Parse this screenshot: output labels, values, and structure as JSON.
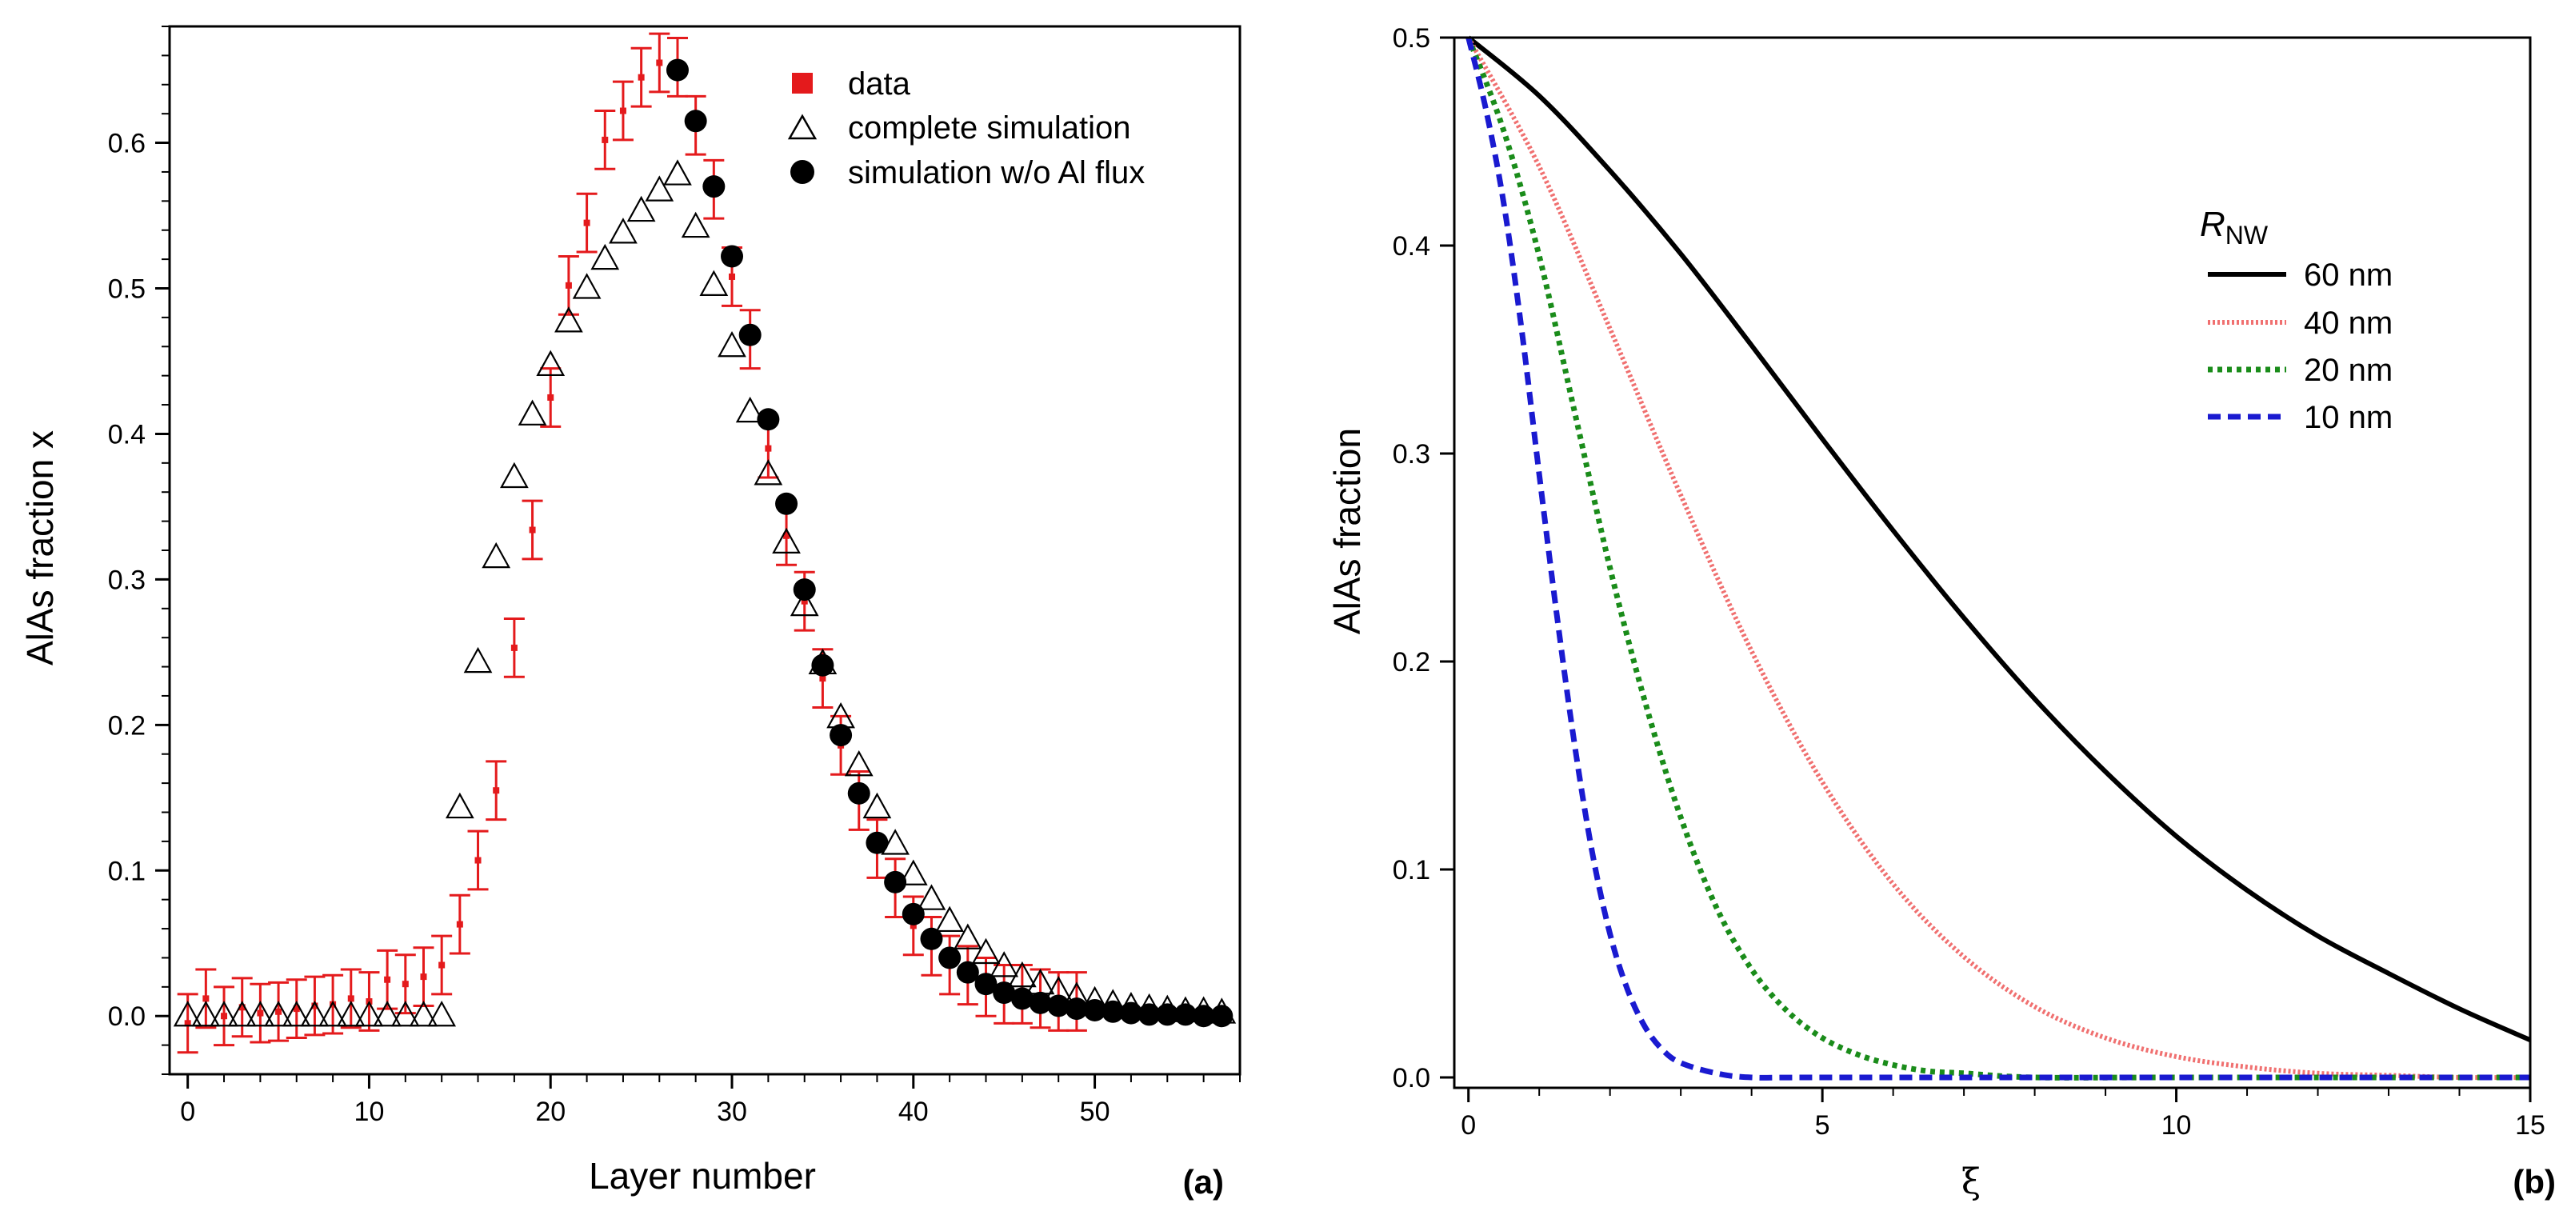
{
  "chart_data": [
    {
      "type": "scatter",
      "panel_label": "(a)",
      "xlabel": "Layer number",
      "ylabel": "AlAs fraction x",
      "xlim": [
        -1,
        58
      ],
      "ylim": [
        -0.04,
        0.68
      ],
      "xticks": [
        0,
        10,
        20,
        30,
        40,
        50
      ],
      "xtick_labels": [
        "0",
        "10",
        "20",
        "30",
        "40",
        "50"
      ],
      "yticks": [
        0.0,
        0.1,
        0.2,
        0.3,
        0.4,
        0.5,
        0.6
      ],
      "ytick_labels": [
        "0.0",
        "0.1",
        "0.2",
        "0.3",
        "0.4",
        "0.5",
        "0.6"
      ],
      "legend_position": "top-right",
      "series": [
        {
          "name": "data",
          "marker": "square",
          "color": "#e41a1c",
          "x": [
            0,
            1,
            2,
            3,
            4,
            5,
            6,
            7,
            8,
            9,
            10,
            11,
            12,
            13,
            14,
            15,
            16,
            17,
            18,
            19,
            20,
            21,
            22,
            23,
            24,
            25,
            26,
            27,
            28,
            29,
            30,
            31,
            32,
            33,
            34,
            35,
            36,
            37,
            38,
            39,
            40,
            41,
            42,
            43,
            44,
            45,
            46,
            47,
            48,
            49
          ],
          "y": [
            -0.005,
            0.012,
            0.0,
            0.006,
            0.002,
            0.003,
            0.005,
            0.007,
            0.008,
            0.012,
            0.01,
            0.025,
            0.022,
            0.027,
            0.035,
            0.063,
            0.107,
            0.155,
            0.253,
            0.334,
            0.425,
            0.502,
            0.545,
            0.602,
            0.622,
            0.645,
            0.655,
            0.652,
            0.612,
            0.568,
            0.508,
            0.465,
            0.39,
            0.33,
            0.285,
            0.232,
            0.186,
            0.148,
            0.115,
            0.088,
            0.062,
            0.048,
            0.035,
            0.028,
            0.02,
            0.015,
            0.015,
            0.012,
            0.01,
            0.01
          ],
          "error": [
            0.02,
            0.02,
            0.02,
            0.02,
            0.02,
            0.02,
            0.02,
            0.02,
            0.02,
            0.02,
            0.02,
            0.02,
            0.02,
            0.02,
            0.02,
            0.02,
            0.02,
            0.02,
            0.02,
            0.02,
            0.02,
            0.02,
            0.02,
            0.02,
            0.02,
            0.02,
            0.02,
            0.02,
            0.02,
            0.02,
            0.02,
            0.02,
            0.02,
            0.02,
            0.02,
            0.02,
            0.02,
            0.02,
            0.02,
            0.02,
            0.02,
            0.02,
            0.02,
            0.02,
            0.02,
            0.02,
            0.02,
            0.02,
            0.02,
            0.02
          ]
        },
        {
          "name": "complete simulation",
          "marker": "open-triangle",
          "color": "#000000",
          "x": [
            0,
            1,
            2,
            3,
            4,
            5,
            6,
            7,
            8,
            9,
            10,
            11,
            12,
            13,
            14,
            15,
            16,
            17,
            18,
            19,
            20,
            21,
            22,
            23,
            24,
            25,
            26,
            27,
            28,
            29,
            30,
            31,
            32,
            33,
            34,
            35,
            36,
            37,
            38,
            39,
            40,
            41,
            42,
            43,
            44,
            45,
            46,
            47,
            48,
            49,
            50,
            51,
            52,
            53,
            54,
            55,
            56,
            57
          ],
          "y": [
            0.0,
            0.0,
            0.0,
            0.0,
            0.0,
            0.0,
            0.0,
            0.0,
            0.0,
            0.0,
            0.0,
            0.0,
            0.0,
            0.0,
            0.0,
            0.143,
            0.243,
            0.315,
            0.37,
            0.413,
            0.447,
            0.477,
            0.5,
            0.52,
            0.538,
            0.553,
            0.567,
            0.578,
            0.542,
            0.502,
            0.46,
            0.415,
            0.372,
            0.325,
            0.282,
            0.242,
            0.205,
            0.172,
            0.143,
            0.118,
            0.097,
            0.08,
            0.065,
            0.053,
            0.043,
            0.034,
            0.027,
            0.022,
            0.017,
            0.013,
            0.01,
            0.008,
            0.006,
            0.005,
            0.004,
            0.003,
            0.003,
            0.002
          ]
        },
        {
          "name": "simulation w/o Al flux",
          "marker": "filled-circle",
          "color": "#000000",
          "x": [
            27,
            28,
            29,
            30,
            31,
            32,
            33,
            34,
            35,
            36,
            37,
            38,
            39,
            40,
            41,
            42,
            43,
            44,
            45,
            46,
            47,
            48,
            49,
            50,
            51,
            52,
            53,
            54,
            55,
            56,
            57
          ],
          "y": [
            0.65,
            0.615,
            0.57,
            0.522,
            0.468,
            0.41,
            0.352,
            0.293,
            0.241,
            0.193,
            0.153,
            0.119,
            0.092,
            0.07,
            0.053,
            0.04,
            0.03,
            0.022,
            0.016,
            0.012,
            0.009,
            0.007,
            0.005,
            0.004,
            0.003,
            0.002,
            0.001,
            0.001,
            0.001,
            0.0,
            0.0
          ]
        }
      ]
    },
    {
      "type": "line",
      "panel_label": "(b)",
      "xlabel": "ξ",
      "ylabel": "AlAs fraction",
      "xlim": [
        -0.2,
        15
      ],
      "ylim": [
        -0.005,
        0.5
      ],
      "xticks": [
        0,
        5,
        10,
        15
      ],
      "xtick_labels": [
        "0",
        "5",
        "10",
        "15"
      ],
      "yticks": [
        0.0,
        0.1,
        0.2,
        0.3,
        0.4,
        0.5
      ],
      "ytick_labels": [
        "0.0",
        "0.1",
        "0.2",
        "0.3",
        "0.4",
        "0.5"
      ],
      "legend_title": "R",
      "legend_title_sub": "NW",
      "legend_position": "top-right",
      "series": [
        {
          "name": "60 nm",
          "style": "solid",
          "color": "#000000",
          "x": [
            0,
            1,
            2,
            3,
            4,
            5,
            6,
            7,
            8,
            9,
            10,
            11,
            12,
            13,
            14,
            15
          ],
          "y": [
            0.5,
            0.472,
            0.436,
            0.396,
            0.352,
            0.307,
            0.263,
            0.221,
            0.182,
            0.147,
            0.116,
            0.09,
            0.068,
            0.05,
            0.033,
            0.018
          ]
        },
        {
          "name": "40 nm",
          "style": "dotted",
          "color": "#f07070",
          "x": [
            0,
            1,
            2,
            3,
            4,
            5,
            6,
            7,
            8,
            9,
            10,
            11,
            12,
            13,
            14,
            15
          ],
          "y": [
            0.5,
            0.438,
            0.36,
            0.28,
            0.205,
            0.142,
            0.093,
            0.058,
            0.034,
            0.019,
            0.01,
            0.005,
            0.002,
            0.001,
            0.0,
            0.0
          ]
        },
        {
          "name": "20 nm",
          "style": "dotted",
          "color": "#1a8c1a",
          "x": [
            0,
            0.5,
            1,
            1.5,
            2,
            2.5,
            3,
            3.5,
            4,
            4.5,
            5,
            5.5,
            6,
            6.5,
            7,
            8,
            10,
            15
          ],
          "y": [
            0.5,
            0.455,
            0.395,
            0.32,
            0.245,
            0.18,
            0.125,
            0.082,
            0.052,
            0.032,
            0.019,
            0.011,
            0.006,
            0.003,
            0.002,
            0.0,
            0.0,
            0.0
          ]
        },
        {
          "name": "10 nm",
          "style": "dashed",
          "color": "#1a1ad0",
          "x": [
            0,
            0.25,
            0.5,
            0.75,
            1,
            1.25,
            1.5,
            1.75,
            2,
            2.25,
            2.5,
            2.75,
            3,
            3.5,
            4,
            5,
            10,
            15
          ],
          "y": [
            0.5,
            0.465,
            0.42,
            0.36,
            0.29,
            0.222,
            0.16,
            0.108,
            0.069,
            0.042,
            0.024,
            0.013,
            0.007,
            0.002,
            0.0,
            0.0,
            0.0,
            0.0
          ]
        }
      ]
    }
  ]
}
